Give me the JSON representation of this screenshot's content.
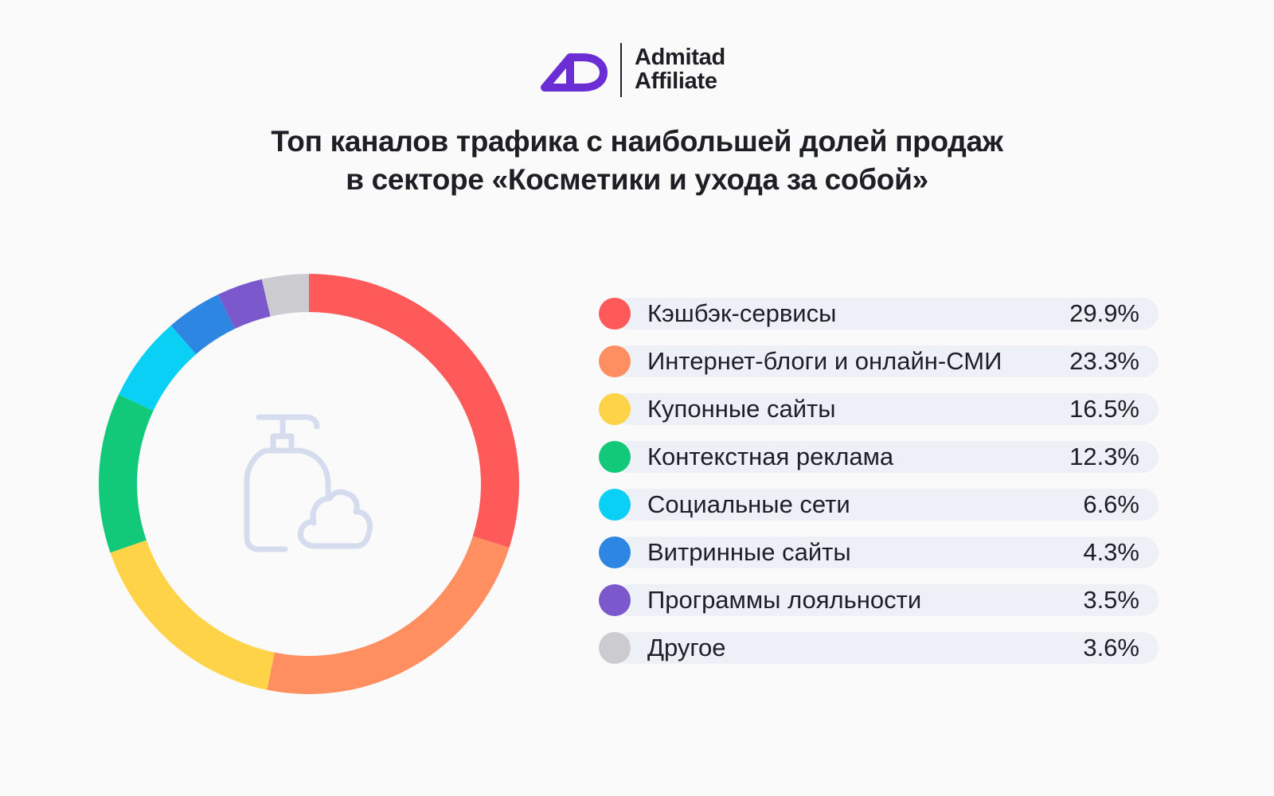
{
  "brand": {
    "line1": "Admitad",
    "line2": "Affiliate",
    "logo_icon": "admitad-ad-logo-icon",
    "logo_color": "#6a2ed4"
  },
  "chart_data": {
    "type": "pie",
    "variant": "donut",
    "title_line1": "Топ каналов трафика с наибольшей долей продаж",
    "title_line2": "в секторе «Косметики и ухода за собой»",
    "center_icon": "soap-dispenser-and-foam-icon",
    "legend_position": "right",
    "categories": [
      "Кэшбэк-сервисы",
      "Интернет-блоги и онлайн-СМИ",
      "Купонные сайты",
      "Контекстная реклама",
      "Социальные сети",
      "Витринные сайты",
      "Программы лояльности",
      "Другое"
    ],
    "values": [
      29.9,
      23.3,
      16.5,
      12.3,
      6.6,
      4.3,
      3.5,
      3.6
    ],
    "value_labels": [
      "29.9%",
      "23.3%",
      "16.5%",
      "12.3%",
      "6.6%",
      "4.3%",
      "3.5%",
      "3.6%"
    ],
    "colors": [
      "#ff5a5a",
      "#ff8f61",
      "#ffd347",
      "#12c97a",
      "#0ad0f5",
      "#2d87e2",
      "#7b58cc",
      "#cbcbd0"
    ]
  }
}
